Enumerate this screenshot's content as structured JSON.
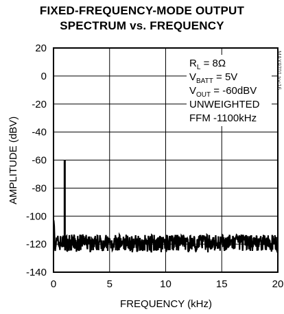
{
  "chart_data": {
    "type": "line",
    "title_lines": [
      "FIXED-FREQUENCY-MODE OUTPUT",
      "SPECTRUM vs. FREQUENCY"
    ],
    "xlabel": "FREQUENCY (kHz)",
    "ylabel": "AMPLITUDE (dBV)",
    "xlim": [
      0,
      20
    ],
    "ylim": [
      -140,
      20
    ],
    "x_ticks": [
      "0",
      "5",
      "10",
      "15",
      "20"
    ],
    "y_ticks": [
      "20",
      "0",
      "-20",
      "-40",
      "-60",
      "-80",
      "-100",
      "-120",
      "-140"
    ],
    "grid": true,
    "annotations": {
      "rl_main": "R",
      "rl_sub": "L",
      "rl_value": " = 8Ω",
      "vbatt_main": "V",
      "vbatt_sub": "BATT",
      "vbatt_value": " = 5V",
      "vout_main": "V",
      "vout_sub": "OUT",
      "vout_value": " = -60dBV",
      "weighting": "UNWEIGHTED",
      "mode": "FFM -1100kHz"
    },
    "figure_tag": "MAX9701 toc16",
    "series": [
      {
        "noise_floor_dbv": -119,
        "noise_band_dbv": [
          -126,
          -113
        ],
        "low_freq_rise": {
          "x": 0.05,
          "y": -103
        },
        "peaks": [
          {
            "x": 1.0,
            "y": -60
          }
        ]
      }
    ]
  }
}
